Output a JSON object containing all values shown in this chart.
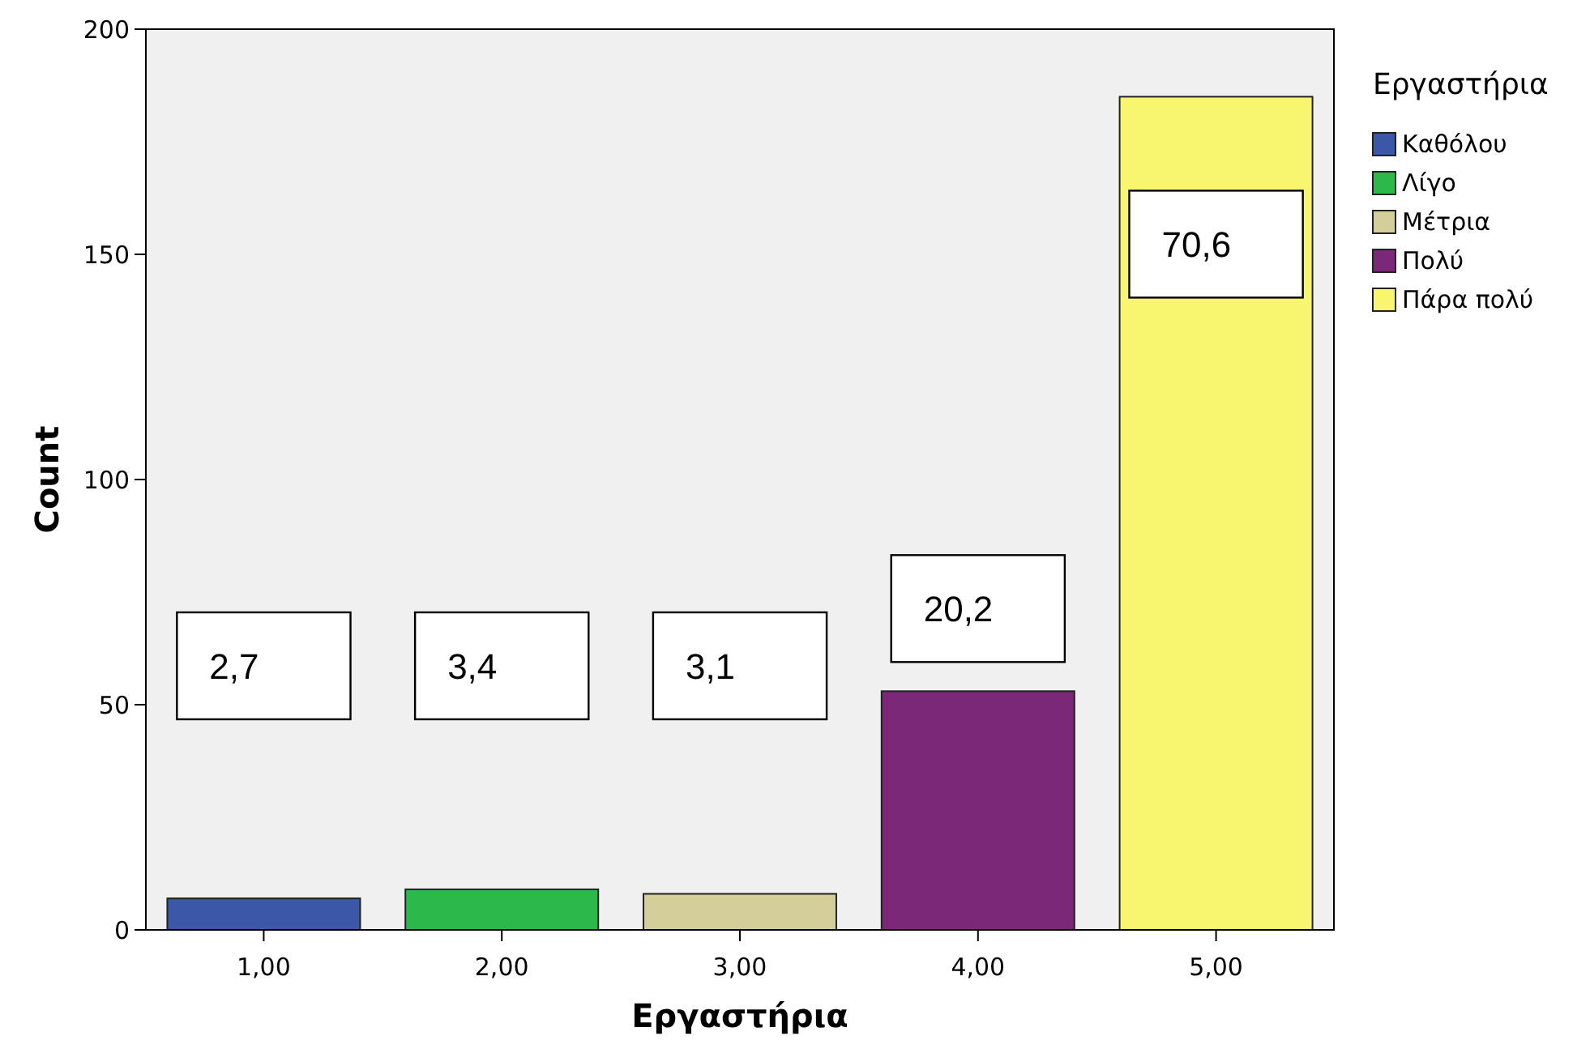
{
  "chart_data": {
    "type": "bar",
    "xlabel": "Εργαστήρια",
    "ylabel": "Count",
    "legend_title": "Εργαστήρια",
    "legend": "right",
    "grid": false,
    "categories": [
      "1,00",
      "2,00",
      "3,00",
      "4,00",
      "5,00"
    ],
    "ylim": [
      0,
      200
    ],
    "yticks": [
      0,
      50,
      100,
      150,
      200
    ],
    "series": [
      {
        "name": "Καθόλου",
        "color": "#3d57a8",
        "values": [
          7,
          null,
          null,
          null,
          null
        ]
      },
      {
        "name": "Λίγο",
        "color": "#2db84b",
        "values": [
          null,
          9,
          null,
          null,
          null
        ]
      },
      {
        "name": "Μέτρια",
        "color": "#d4cf9a",
        "values": [
          null,
          null,
          8,
          null,
          null
        ]
      },
      {
        "name": "Πολύ",
        "color": "#7b2878",
        "values": [
          null,
          null,
          null,
          53,
          null
        ]
      },
      {
        "name": "Πάρα πολύ",
        "color": "#f8f56e",
        "values": [
          null,
          null,
          null,
          null,
          185
        ]
      }
    ],
    "annotations": [
      "2,7",
      "3,4",
      "3,1",
      "20,2",
      "70,6"
    ]
  }
}
